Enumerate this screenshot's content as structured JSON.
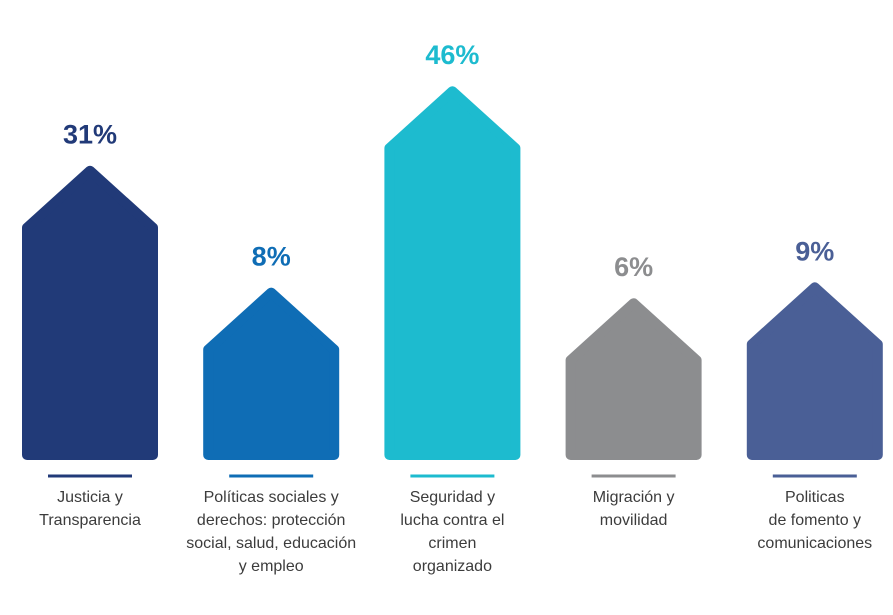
{
  "chart_data": {
    "type": "bar",
    "categories": [
      "Justicia y\nTransparencia",
      "Políticas sociales y\nderechos: protección\nsocial, salud, educación\ny empleo",
      "Seguridad y\nlucha contra el\ncrimen\norganizado",
      "Migración y\nmovilidad",
      "Politicas\nde fomento y\ncomunicaciones"
    ],
    "values": [
      31,
      8,
      46,
      6,
      9
    ],
    "value_labels": [
      "31%",
      "8%",
      "46%",
      "6%",
      "9%"
    ],
    "colors": [
      "#213a78",
      "#0f6db5",
      "#1dbbcf",
      "#8c8d8f",
      "#4a5f96"
    ]
  }
}
